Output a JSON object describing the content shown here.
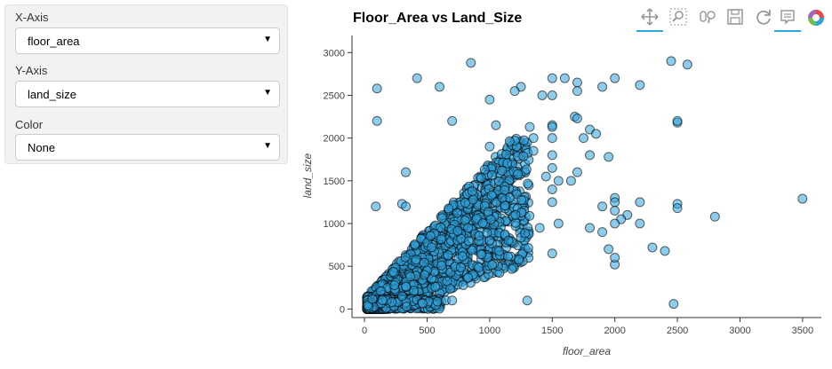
{
  "controls": {
    "x_axis": {
      "label": "X-Axis",
      "value": "floor_area"
    },
    "y_axis": {
      "label": "Y-Axis",
      "value": "land_size"
    },
    "color": {
      "label": "Color",
      "value": "None"
    }
  },
  "toolbar": {
    "tools": [
      "pan-icon",
      "box-zoom-icon",
      "wheel-zoom-icon",
      "save-icon",
      "reset-icon",
      "hover-icon",
      "bokeh-logo-icon"
    ],
    "active_color": "#26aae1"
  },
  "colors": {
    "point_fill": "#30a2da",
    "point_stroke": "#000000"
  },
  "chart_data": {
    "type": "scatter",
    "title": "Floor_Area vs Land_Size",
    "xlabel": "floor_area",
    "ylabel": "land_size",
    "xlim": [
      -100,
      3650
    ],
    "ylim": [
      -100,
      3200
    ],
    "x_ticks": [
      0,
      500,
      1000,
      1500,
      2000,
      2500,
      3000,
      3500
    ],
    "y_ticks": [
      0,
      500,
      1000,
      1500,
      2000,
      2500,
      3000
    ],
    "series": [
      {
        "x": [
          100,
          850,
          420,
          600,
          1250,
          1500,
          1600,
          1700,
          2000,
          2450,
          2580,
          1000,
          1200,
          1420,
          1500,
          1700,
          1900,
          2200,
          100,
          700,
          1050,
          1320,
          1500,
          1680,
          1700,
          2500,
          1800,
          1750,
          1850,
          1500,
          1350,
          1500,
          330,
          1000,
          1350,
          1500,
          1500,
          1800,
          1950,
          1550,
          1450,
          1650,
          2000,
          2200,
          2500,
          90,
          300,
          330,
          1100,
          1500,
          1900,
          2000,
          2100,
          2050,
          2000,
          2200,
          3500,
          2800,
          2500,
          1550,
          1400,
          1800,
          1900,
          2000,
          1950,
          2000,
          2300,
          2400,
          2000,
          1500,
          1000,
          1150,
          2470,
          1300,
          2500,
          1700,
          1500,
          650,
          700,
          500,
          480,
          300
        ],
        "y": [
          2580,
          2880,
          2700,
          2600,
          2600,
          2700,
          2700,
          2650,
          2700,
          2900,
          2860,
          2450,
          2550,
          2500,
          2500,
          2550,
          2600,
          2620,
          2200,
          2200,
          2150,
          2130,
          2150,
          2250,
          2230,
          2180,
          2100,
          2000,
          2050,
          2000,
          2000,
          2130,
          1600,
          1900,
          1850,
          1800,
          1650,
          1800,
          1780,
          1500,
          1550,
          1500,
          1300,
          1250,
          1230,
          1200,
          1230,
          1200,
          1300,
          1250,
          1200,
          1250,
          1100,
          1050,
          1000,
          1000,
          1290,
          1080,
          1180,
          1000,
          950,
          950,
          900,
          1150,
          700,
          520,
          720,
          680,
          600,
          650,
          800,
          800,
          60,
          100,
          2200,
          1600,
          1400,
          100,
          100,
          450,
          400,
          150
        ],
        "note_dense_cluster": "dense band of points rising from (0,0) to about (1000,1800)"
      }
    ]
  }
}
